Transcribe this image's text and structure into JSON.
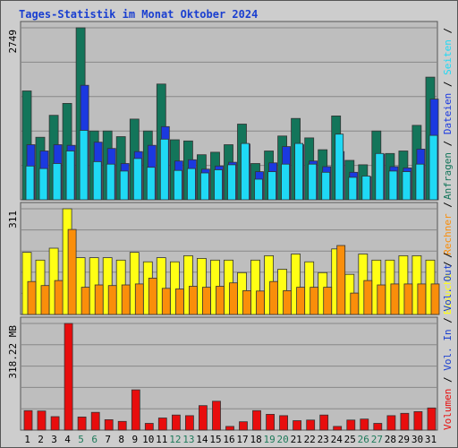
{
  "title": "Tages-Statistik im Monat Oktober 2024",
  "colors": {
    "anfragen": "#13755a",
    "dateien": "#1b39e0",
    "seiten": "#1fd9f5",
    "besuche": "#ffff14",
    "rechner": "#fa8e0a",
    "vol_in": "#1a3fd0",
    "vol_out": "#1a3fd0",
    "volumen": "#e80d0d",
    "grid": "#888888",
    "panel": "#bebebe",
    "weekend_day": "#1e7a5a"
  },
  "chart_data": [
    {
      "type": "bar",
      "panel": "top",
      "ymax_label": "2749",
      "ymax": 2749,
      "legend": [
        "Anfragen",
        "/",
        "Dateien",
        "/",
        "Seiten",
        "/"
      ],
      "series": [
        {
          "name": "Anfragen",
          "values": [
            1740,
            1000,
            1350,
            1540,
            2749,
            1100,
            1100,
            1010,
            1290,
            1100,
            1850,
            960,
            940,
            720,
            760,
            880,
            1210,
            580,
            780,
            1020,
            1300,
            990,
            800,
            1340,
            630,
            560,
            1100,
            740,
            780,
            1190,
            1960
          ]
        },
        {
          "name": "Dateien",
          "values": [
            880,
            780,
            880,
            870,
            1830,
            920,
            820,
            580,
            770,
            870,
            1170,
            620,
            640,
            490,
            540,
            600,
            890,
            450,
            590,
            850,
            880,
            620,
            530,
            770,
            440,
            370,
            730,
            530,
            510,
            810,
            1610
          ]
        },
        {
          "name": "Seiten",
          "values": [
            540,
            500,
            580,
            780,
            1110,
            610,
            570,
            460,
            660,
            520,
            970,
            470,
            500,
            430,
            480,
            560,
            900,
            330,
            450,
            570,
            900,
            570,
            440,
            1050,
            360,
            380,
            740,
            460,
            450,
            570,
            1030
          ]
        }
      ]
    },
    {
      "type": "bar",
      "panel": "middle",
      "ymax_label": "311",
      "ymax": 311,
      "legend": [
        "Besuche",
        "/",
        "Rechner",
        "/"
      ],
      "series": [
        {
          "name": "Besuche",
          "values": [
            183,
            160,
            195,
            311,
            167,
            167,
            167,
            160,
            183,
            155,
            167,
            155,
            173,
            165,
            160,
            160,
            123,
            160,
            173,
            133,
            178,
            155,
            123,
            193,
            118,
            178,
            160,
            160,
            173,
            173,
            160
          ]
        },
        {
          "name": "Rechner",
          "values": [
            97,
            85,
            100,
            250,
            80,
            87,
            85,
            87,
            90,
            107,
            77,
            75,
            83,
            80,
            83,
            93,
            70,
            69,
            97,
            70,
            80,
            80,
            80,
            203,
            63,
            100,
            87,
            90,
            90,
            90,
            90
          ]
        }
      ]
    },
    {
      "type": "bar",
      "panel": "bottom",
      "ymax_label": "318.22 MB",
      "ymax": 318.22,
      "legend": [
        "Volumen",
        "/",
        "Vol. In",
        "/",
        "Vol. Out",
        "/"
      ],
      "series": [
        {
          "name": "Volumen",
          "values": [
            58,
            57,
            40,
            318.22,
            39,
            53,
            31,
            26,
            120,
            20,
            36,
            45,
            43,
            73,
            86,
            11,
            25,
            58,
            47,
            43,
            28,
            30,
            45,
            11,
            30,
            33,
            20,
            43,
            50,
            55,
            66
          ]
        }
      ],
      "categories": [
        "1",
        "2",
        "3",
        "4",
        "5",
        "6",
        "7",
        "8",
        "9",
        "10",
        "11",
        "12",
        "13",
        "14",
        "15",
        "16",
        "17",
        "18",
        "19",
        "20",
        "21",
        "22",
        "23",
        "24",
        "25",
        "26",
        "27",
        "28",
        "29",
        "30",
        "31"
      ],
      "weekend_days": [
        "5",
        "6",
        "12",
        "13",
        "19",
        "20",
        "26",
        "27"
      ]
    }
  ]
}
